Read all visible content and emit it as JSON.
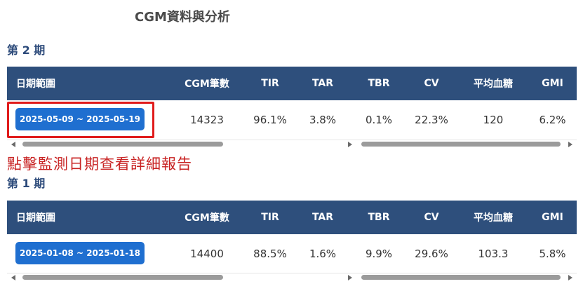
{
  "page": {
    "title": "CGM資料與分析"
  },
  "annotation": "點擊監測日期查看詳細報告",
  "columns": [
    "日期範圍",
    "CGM筆數",
    "TIR",
    "TAR",
    "TBR",
    "CV",
    "平均血糖",
    "GMI"
  ],
  "periods": [
    {
      "title": "第 2 期",
      "date_range": "2025-05-09 ~ 2025-05-19",
      "cgm_count": "14323",
      "tir": "96.1%",
      "tar": "3.8%",
      "tbr": "0.1%",
      "cv": "22.3%",
      "avg_glucose": "120",
      "gmi": "6.2%",
      "highlighted": true
    },
    {
      "title": "第 1 期",
      "date_range": "2025-01-08 ~ 2025-01-18",
      "cgm_count": "14400",
      "tir": "88.5%",
      "tar": "1.6%",
      "tbr": "9.9%",
      "cv": "29.6%",
      "avg_glucose": "103.3",
      "gmi": "5.8%",
      "highlighted": false
    }
  ],
  "colors": {
    "header_bg": "#2e4f7c",
    "button_bg": "#1f6fd0",
    "highlight_border": "#e01b1b",
    "annotation_text": "#c82323"
  },
  "icons": {
    "scroll_left": "triangle-left-icon",
    "scroll_right": "triangle-right-icon"
  }
}
